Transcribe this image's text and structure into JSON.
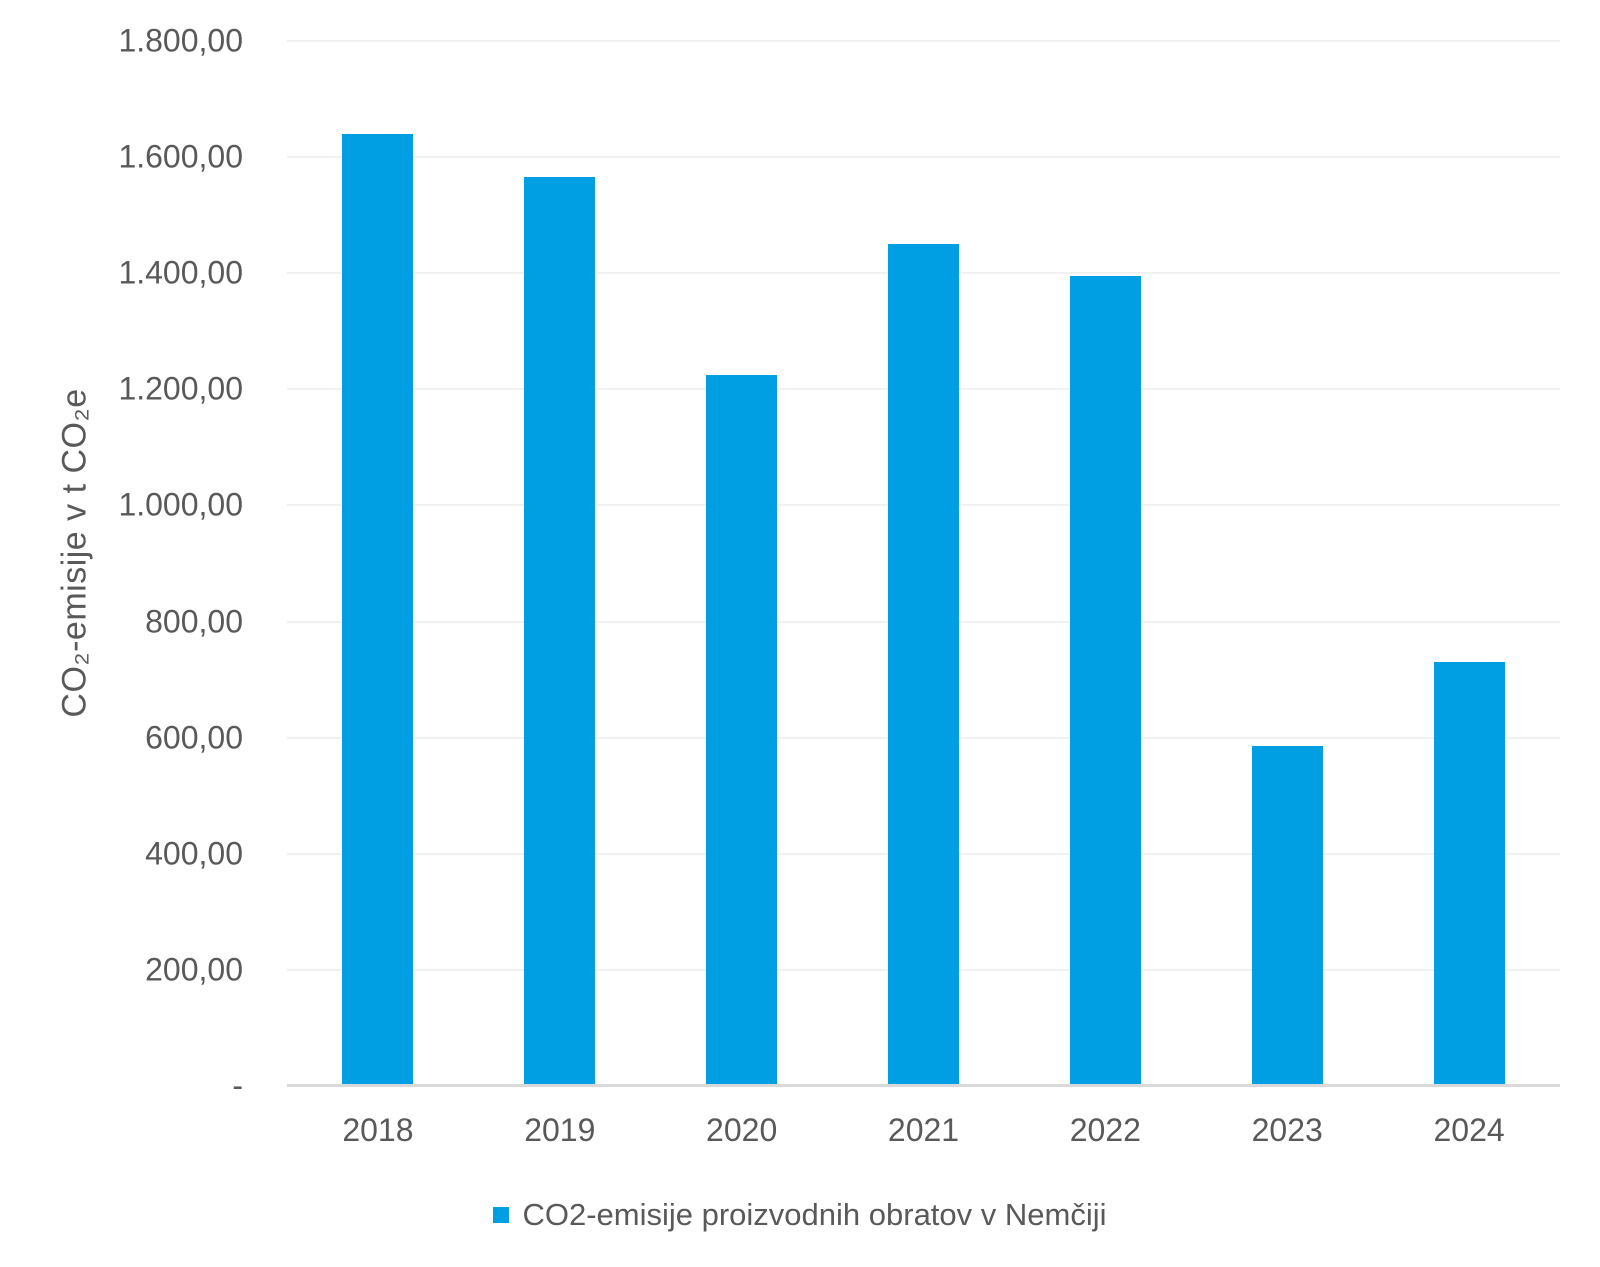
{
  "colors": {
    "bar": "#009FE3",
    "grid": "#f1f1f1",
    "axis_line": "#d9d9d9",
    "text": "#595959",
    "background": "#ffffff"
  },
  "y_axis": {
    "title": "CO₂-emisije v t CO₂e",
    "ticks": [
      {
        "label": "1.800,00",
        "value": 1800
      },
      {
        "label": "1.600,00",
        "value": 1600
      },
      {
        "label": "1.400,00",
        "value": 1400
      },
      {
        "label": "1.200,00",
        "value": 1200
      },
      {
        "label": "1.000,00",
        "value": 1000
      },
      {
        "label": "800,00",
        "value": 800
      },
      {
        "label": "600,00",
        "value": 600
      },
      {
        "label": "400,00",
        "value": 400
      },
      {
        "label": "200,00",
        "value": 200
      },
      {
        "label": "-",
        "value": 0
      }
    ]
  },
  "legend": {
    "label": "CO2-emisije proizvodnih obratov v Nemčiji",
    "marker": "square",
    "marker_color": "#009FE3",
    "position": "bottom-center"
  },
  "chart_data": {
    "type": "bar",
    "categories": [
      "2018",
      "2019",
      "2020",
      "2021",
      "2022",
      "2023",
      "2024"
    ],
    "series": [
      {
        "name": "CO2-emisije proizvodnih obratov v Nemčiji",
        "values": [
          1640,
          1565,
          1225,
          1450,
          1395,
          585,
          730
        ]
      }
    ],
    "xlabel": "",
    "ylabel": "CO₂-emisije v t CO₂e",
    "ylim": [
      0,
      1800
    ],
    "ytick_step": 200,
    "grid": true,
    "legend_position": "bottom",
    "number_format": "thousands '.' decimals ',' (e.g. 1.800,00), zero shown as '-'"
  }
}
